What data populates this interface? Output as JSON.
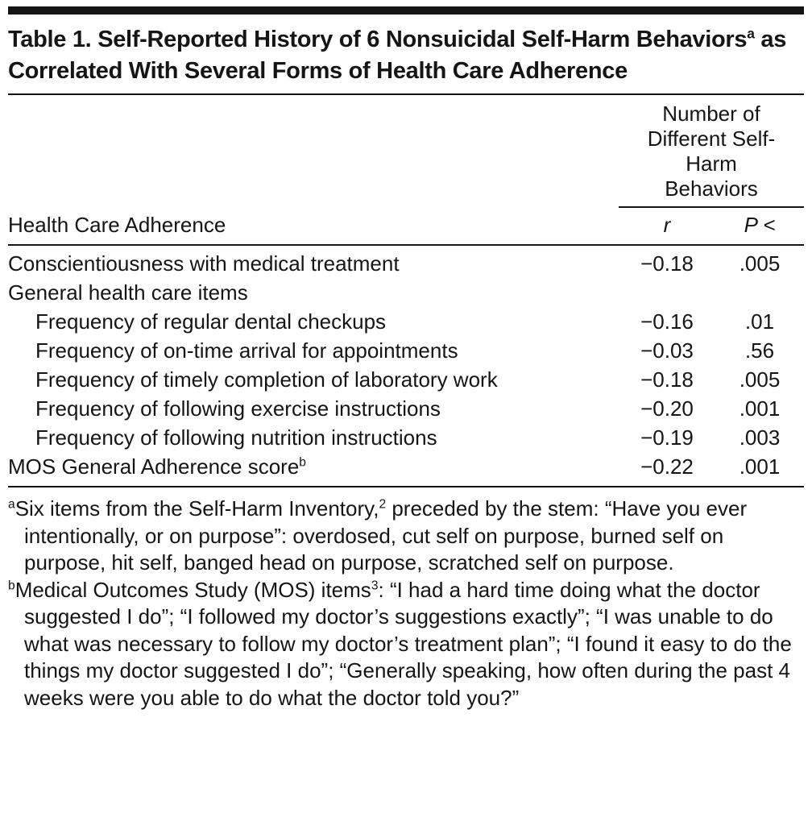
{
  "title": {
    "main": "Table 1. Self-Reported History of 6 Nonsuicidal Self-Harm Behaviors",
    "sup": "a",
    "rest": " as Correlated With Several Forms of Health Care Adherence"
  },
  "header": {
    "stub": "Health Care Adherence",
    "spanner": "Number of Different Self-Harm Behaviors",
    "col_r": "r",
    "col_p": "P <"
  },
  "rows": [
    {
      "label": "Conscientiousness with medical treatment",
      "sup": "",
      "indent": false,
      "r": "−0.18",
      "p": ".005"
    },
    {
      "label": "General health care items",
      "sup": "",
      "indent": false,
      "r": "",
      "p": ""
    },
    {
      "label": "Frequency of regular dental checkups",
      "sup": "",
      "indent": true,
      "r": "−0.16",
      "p": ".01"
    },
    {
      "label": "Frequency of on-time arrival for appointments",
      "sup": "",
      "indent": true,
      "r": "−0.03",
      "p": ".56"
    },
    {
      "label": "Frequency of timely completion of laboratory work",
      "sup": "",
      "indent": true,
      "r": "−0.18",
      "p": ".005"
    },
    {
      "label": "Frequency of following exercise instructions",
      "sup": "",
      "indent": true,
      "r": "−0.20",
      "p": ".001"
    },
    {
      "label": "Frequency of following nutrition instructions",
      "sup": "",
      "indent": true,
      "r": "−0.19",
      "p": ".003"
    },
    {
      "label": "MOS General Adherence score",
      "sup": "b",
      "indent": false,
      "r": "−0.22",
      "p": ".001"
    }
  ],
  "footnotes": [
    {
      "marker": "a",
      "pre": "Six items from the Self-Harm Inventory,",
      "ref": "2",
      "post": " preceded by the stem: “Have you ever intentionally, or on purpose”: overdosed, cut self on purpose, burned self on purpose, hit self, banged head on purpose, scratched self on purpose."
    },
    {
      "marker": "b",
      "pre": "Medical Outcomes Study (MOS) items",
      "ref": "3",
      "post": ": “I had a hard time doing what the doctor suggested I do”; “I followed my doctor’s suggestions exactly”; “I was unable to do what was necessary to follow my doctor’s treatment plan”; “I found it easy to do the things my doctor suggested I do”; “Generally speaking, how often during the past 4 weeks were you able to do what the doctor told you?”"
    }
  ],
  "colors": {
    "text": "#151515",
    "rule": "#141414",
    "background": "#ffffff"
  }
}
